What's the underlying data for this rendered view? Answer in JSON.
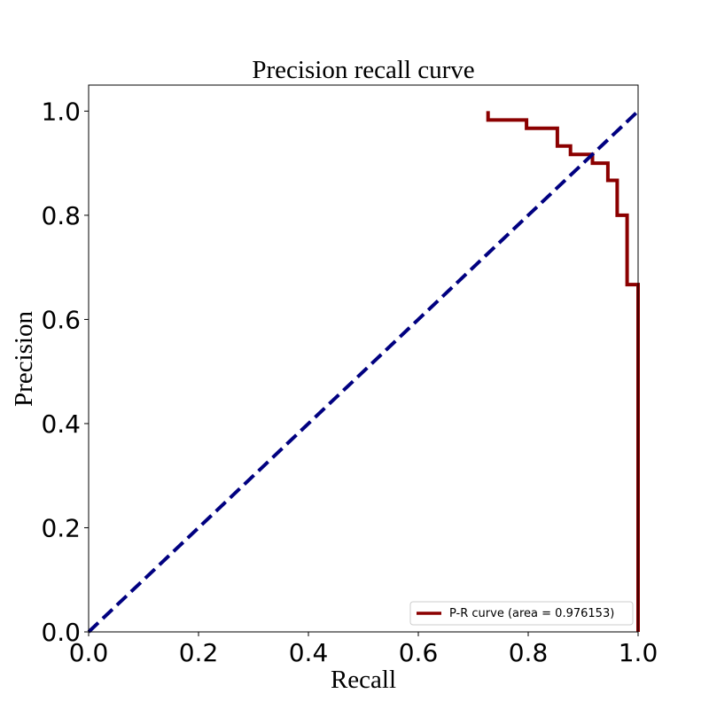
{
  "chart_data": {
    "type": "line",
    "title": "Precision recall curve",
    "xlabel": "Recall",
    "ylabel": "Precision",
    "xlim": [
      0.0,
      1.0
    ],
    "ylim": [
      0.0,
      1.05
    ],
    "x_ticks": [
      "0.0",
      "0.2",
      "0.4",
      "0.6",
      "0.8",
      "1.0"
    ],
    "y_ticks": [
      "0.0",
      "0.2",
      "0.4",
      "0.6",
      "0.8",
      "1.0"
    ],
    "grid": false,
    "legend_position": "bottom-right",
    "series": [
      {
        "name": "P-R curve (area = 0.976153)",
        "color": "#8b0000",
        "style": "solid",
        "step": true,
        "x": [
          0.727,
          0.727,
          0.797,
          0.797,
          0.853,
          0.853,
          0.877,
          0.877,
          0.917,
          0.917,
          0.945,
          0.945,
          0.962,
          0.962,
          0.98,
          0.98,
          1.0,
          1.0
        ],
        "y": [
          1.0,
          0.983,
          0.983,
          0.967,
          0.967,
          0.933,
          0.933,
          0.917,
          0.917,
          0.9,
          0.9,
          0.867,
          0.867,
          0.8,
          0.8,
          0.667,
          0.667,
          0.0
        ]
      },
      {
        "color": "#000080",
        "style": "dashed",
        "step": false,
        "x": [
          0.0,
          1.0
        ],
        "y": [
          0.0,
          1.0
        ]
      }
    ]
  }
}
